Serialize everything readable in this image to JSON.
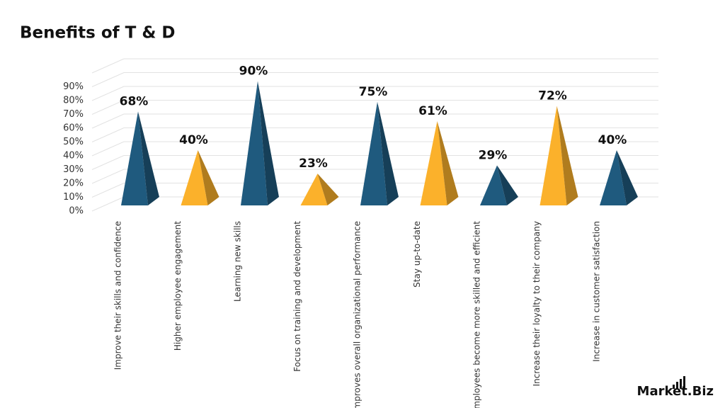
{
  "chart_data": {
    "type": "pyramid",
    "title": "Benefits of T & D",
    "logo": "Market.Biz",
    "categories": [
      "Improve their skills and confidence",
      "Higher employee engagement",
      "Learning new skills",
      "Focus on training and development",
      "Improves overall organizational performance",
      "Stay up-to-date",
      "Employees become more skilled and efficient",
      "Increase their loyalty to their company",
      "Increase in customer satisfaction"
    ],
    "values": [
      68,
      40,
      90,
      23,
      75,
      61,
      29,
      72,
      40
    ],
    "value_labels": [
      "68%",
      "40%",
      "90%",
      "23%",
      "75%",
      "61%",
      "29%",
      "72%",
      "40%"
    ],
    "colors": [
      "#1f5a7e",
      "#fbb12b",
      "#1f5a7e",
      "#fbb12b",
      "#1f5a7e",
      "#fbb12b",
      "#1f5a7e",
      "#fbb12b",
      "#1f5a7e"
    ],
    "ylim": [
      0,
      100
    ],
    "yticks": [
      {
        "value": 0,
        "label": "0%"
      },
      {
        "value": 10,
        "label": "10%"
      },
      {
        "value": 20,
        "label": "20%"
      },
      {
        "value": 30,
        "label": "30%"
      },
      {
        "value": 40,
        "label": "40%"
      },
      {
        "value": 50,
        "label": "50%"
      },
      {
        "value": 60,
        "label": "60%"
      },
      {
        "value": 70,
        "label": "70%"
      },
      {
        "value": 80,
        "label": "80%"
      },
      {
        "value": 90,
        "label": "90%"
      }
    ],
    "grid": true
  }
}
